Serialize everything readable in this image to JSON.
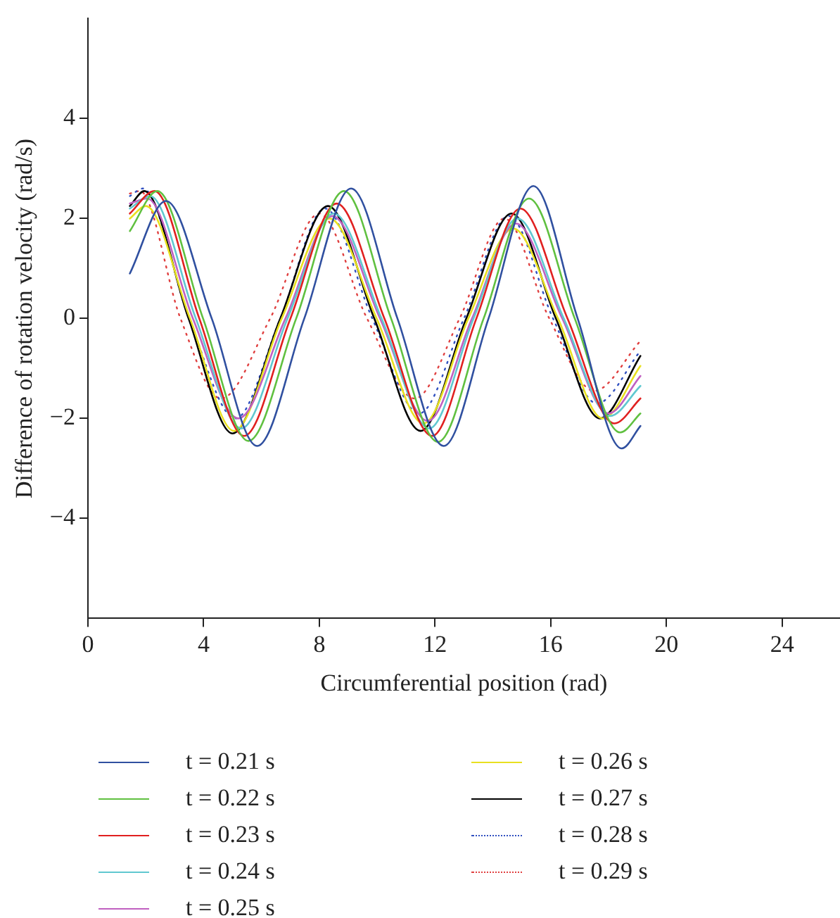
{
  "chart_data": {
    "type": "line",
    "xlabel": "Circumferential position (rad)",
    "ylabel": "Difference of rotation velocity (rad/s)",
    "xlim": [
      0,
      26
    ],
    "xticks": [
      0,
      4,
      8,
      12,
      16,
      20,
      24
    ],
    "ylim": [
      -6,
      6
    ],
    "yticks": [
      -4,
      -2,
      0,
      2,
      4
    ],
    "grid": false,
    "legend": "bottom",
    "marker": "none",
    "series": [
      {
        "name": "t = 0.21 s",
        "color": "#3050a0",
        "line_style": "solid",
        "x": [
          1.45,
          2.7,
          4.28,
          5.85,
          7.48,
          9.1,
          10.7,
          12.3,
          13.85,
          15.4,
          16.93,
          18.45,
          19.1
        ],
        "values": [
          0.9,
          2.35,
          0,
          -2.55,
          0,
          2.6,
          0,
          -2.55,
          0,
          2.65,
          0,
          -2.6,
          -2.15
        ]
      },
      {
        "name": "t = 0.22 s",
        "color": "#60c040",
        "line_style": "solid",
        "x": [
          1.45,
          2.4,
          3.98,
          5.55,
          7.2,
          8.85,
          10.48,
          12.1,
          13.68,
          15.25,
          16.83,
          18.4,
          19.1
        ],
        "values": [
          1.75,
          2.55,
          0,
          -2.45,
          0,
          2.55,
          0,
          -2.47,
          0,
          2.4,
          0,
          -2.28,
          -1.9
        ]
      },
      {
        "name": "t = 0.23 s",
        "color": "#e02020",
        "line_style": "solid",
        "x": [
          1.45,
          2.3,
          3.85,
          5.4,
          7.0,
          8.6,
          10.25,
          11.9,
          13.43,
          14.95,
          16.58,
          18.2,
          19.1
        ],
        "values": [
          2.1,
          2.55,
          0,
          -2.35,
          0,
          2.3,
          0,
          -2.35,
          0,
          2.2,
          0,
          -2.1,
          -1.6
        ]
      },
      {
        "name": "t = 0.24 s",
        "color": "#60c8d0",
        "line_style": "solid",
        "x": [
          1.45,
          2.15,
          3.73,
          5.3,
          6.9,
          8.5,
          10.15,
          11.8,
          13.33,
          14.85,
          16.45,
          18.05,
          19.1
        ],
        "values": [
          2.2,
          2.45,
          0,
          -2.2,
          0,
          2.1,
          0,
          -2.2,
          0,
          2.0,
          0,
          -1.95,
          -1.35
        ]
      },
      {
        "name": "t = 0.25 s",
        "color": "#c060c0",
        "line_style": "solid",
        "x": [
          1.45,
          2.05,
          3.63,
          5.2,
          6.83,
          8.45,
          10.1,
          11.75,
          13.28,
          14.8,
          16.4,
          18.0,
          19.1
        ],
        "values": [
          2.3,
          2.4,
          0,
          -2.0,
          0,
          2.05,
          0,
          -2.05,
          0,
          1.9,
          0,
          -1.9,
          -1.15
        ]
      },
      {
        "name": "t = 0.26 s",
        "color": "#e8e020",
        "line_style": "solid",
        "x": [
          1.45,
          2.0,
          3.53,
          5.05,
          6.7,
          8.35,
          9.98,
          11.6,
          13.15,
          14.7,
          16.25,
          17.8,
          19.1
        ],
        "values": [
          2.0,
          2.25,
          0,
          -2.25,
          0,
          2.0,
          0,
          -2.1,
          0,
          1.8,
          0,
          -2.0,
          -0.95
        ]
      },
      {
        "name": "t = 0.27 s",
        "color": "#000000",
        "line_style": "solid",
        "x": [
          1.45,
          1.95,
          3.48,
          5.0,
          6.65,
          8.3,
          9.9,
          11.5,
          13.08,
          14.65,
          16.18,
          17.7,
          19.1
        ],
        "values": [
          2.25,
          2.55,
          0,
          -2.3,
          0,
          2.25,
          0,
          -2.25,
          0,
          2.1,
          0,
          -2.0,
          -0.75
        ]
      },
      {
        "name": "t = 0.28 s",
        "color": "#3050c0",
        "line_style": "dotted",
        "x": [
          1.45,
          1.9,
          3.5,
          5.1,
          6.65,
          8.2,
          9.83,
          11.45,
          13.0,
          14.55,
          16.08,
          17.6,
          19.1
        ],
        "values": [
          2.45,
          2.6,
          0,
          -2.0,
          0,
          2.2,
          0,
          -1.9,
          0,
          2.05,
          0,
          -1.7,
          -0.65
        ]
      },
      {
        "name": "t = 0.29 s",
        "color": "#e04040",
        "line_style": "dotted",
        "x": [
          1.45,
          1.8,
          3.2,
          4.6,
          6.3,
          8.0,
          9.65,
          11.3,
          12.85,
          14.4,
          15.95,
          17.5,
          19.1
        ],
        "values": [
          2.5,
          2.55,
          0,
          -1.6,
          0,
          2.1,
          0,
          -1.6,
          0,
          2.0,
          0,
          -1.45,
          -0.45
        ]
      }
    ]
  }
}
